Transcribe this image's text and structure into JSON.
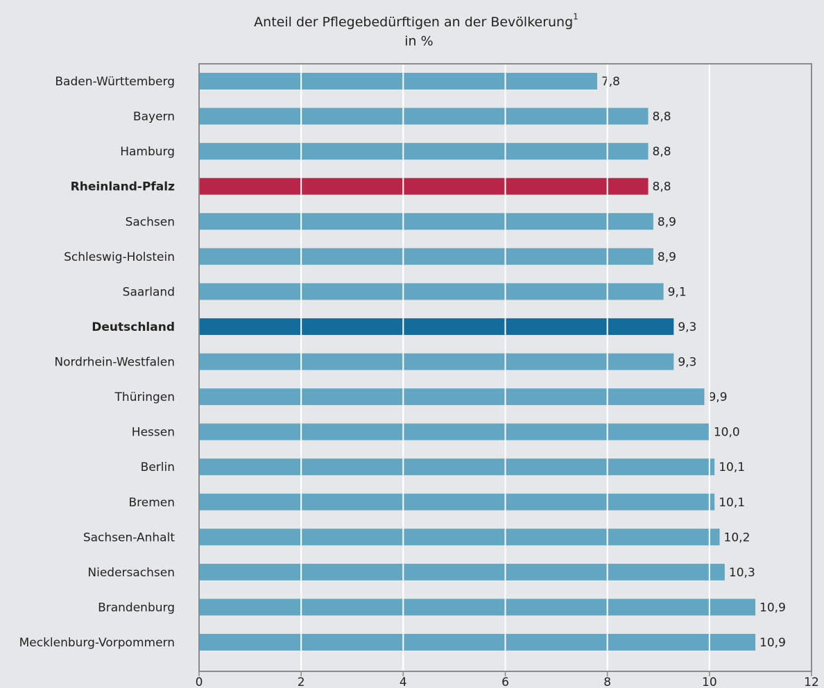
{
  "chart_data": {
    "type": "bar",
    "orientation": "horizontal",
    "title": "Anteil der Pflegebedürftigen an der Bevölkerung",
    "title_footnote_marker": "1",
    "subtitle": "in %",
    "categories": [
      "Baden-Württemberg",
      "Bayern",
      "Hamburg",
      "Rheinland-Pfalz",
      "Sachsen",
      "Schleswig-Holstein",
      "Saarland",
      "Deutschland",
      "Nordrhein-Westfalen",
      "Thüringen",
      "Hessen",
      "Berlin",
      "Bremen",
      "Sachsen-Anhalt",
      "Niedersachsen",
      "Brandenburg",
      "Mecklenburg-Vorpommern"
    ],
    "values": [
      7.8,
      8.8,
      8.8,
      8.8,
      8.9,
      8.9,
      9.1,
      9.3,
      9.3,
      9.9,
      10.0,
      10.1,
      10.1,
      10.2,
      10.3,
      10.9,
      10.9
    ],
    "value_labels": [
      "7,8",
      "8,8",
      "8,8",
      "8,8",
      "8,9",
      "8,9",
      "9,1",
      "9,3",
      "9,3",
      "9,9",
      "10,0",
      "10,1",
      "10,1",
      "10,2",
      "10,3",
      "10,9",
      "10,9"
    ],
    "color": "#63a6c2",
    "colors": [
      "#63a6c2",
      "#63a6c2",
      "#63a6c2",
      "#b8264a",
      "#63a6c2",
      "#63a6c2",
      "#63a6c2",
      "#136c9b",
      "#63a6c2",
      "#63a6c2",
      "#63a6c2",
      "#63a6c2",
      "#63a6c2",
      "#63a6c2",
      "#63a6c2",
      "#63a6c2",
      "#63a6c2"
    ],
    "value_label_color": "#2a7aa8",
    "xlim": [
      0,
      12
    ],
    "xticks": [
      0,
      2,
      4,
      6,
      8,
      10,
      12
    ],
    "grid": true
  }
}
